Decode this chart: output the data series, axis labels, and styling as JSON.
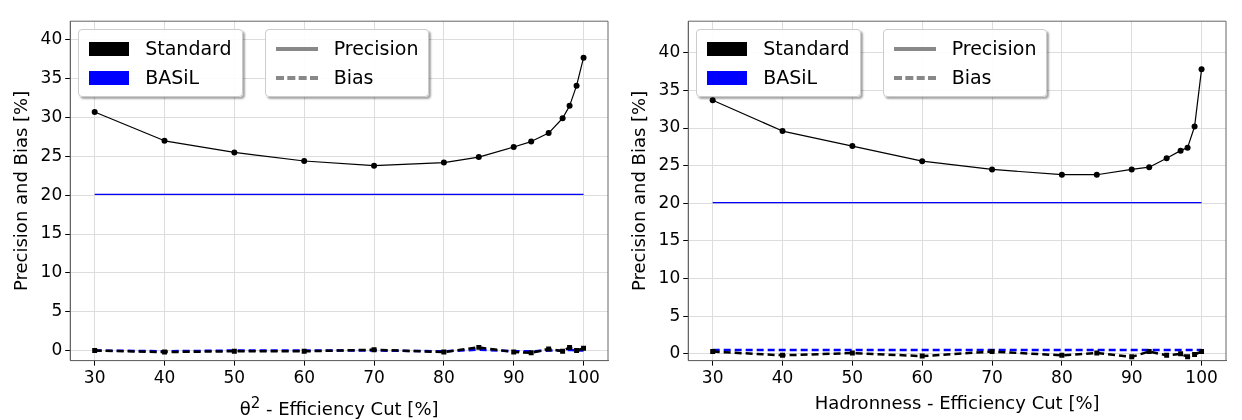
{
  "chart_data": [
    {
      "type": "line",
      "xlabel": "θ$^{2}$ - Efficiency Cut [%]",
      "ylabel": "Precision and Bias [%]",
      "xlim": [
        26.5,
        103.5
      ],
      "ylim": [
        -1.3,
        42.4
      ],
      "xticks": [
        30,
        40,
        50,
        60,
        70,
        80,
        90,
        100
      ],
      "yticks": [
        0,
        5,
        10,
        15,
        20,
        25,
        30,
        35,
        40
      ],
      "grid": true,
      "legend": "top left",
      "annotations": [
        "Precision",
        "Bias"
      ],
      "x": [
        30,
        40,
        50,
        60,
        70,
        80,
        85,
        90,
        92.5,
        95,
        97,
        98,
        99,
        100
      ],
      "series": [
        {
          "name": "Standard",
          "color": "#000000",
          "marker": "circle",
          "line_style": "solid",
          "values": [
            30.7,
            27.0,
            25.5,
            24.4,
            23.8,
            24.2,
            24.9,
            26.2,
            26.9,
            28.0,
            29.9,
            31.5,
            34.1,
            37.7
          ]
        },
        {
          "name": "BASiL",
          "color": "#0000ff",
          "marker": "none",
          "line_style": "solid",
          "values": [
            20.1,
            20.1,
            20.1,
            20.1,
            20.1,
            20.1,
            20.1,
            20.1,
            20.1,
            20.1,
            20.1,
            20.1,
            20.1,
            20.1
          ]
        },
        {
          "color": "#000000",
          "marker": "square",
          "line_style": "dashed",
          "values": [
            0.0,
            -0.2,
            -0.1,
            -0.1,
            0.1,
            -0.2,
            0.4,
            -0.2,
            -0.3,
            0.2,
            -0.1,
            0.4,
            0.0,
            0.3
          ]
        },
        {
          "color": "#0000ff",
          "marker": "none",
          "line_style": "dashed",
          "values": [
            0.0,
            -0.1,
            0.0,
            0.0,
            0.0,
            -0.1,
            0.1,
            -0.1,
            -0.1,
            0.0,
            0.0,
            0.1,
            0.0,
            0.0
          ]
        }
      ]
    },
    {
      "type": "line",
      "xlabel": "Hadronness - Efficiency Cut [%]",
      "ylabel": "Precision and Bias [%]",
      "xlim": [
        26.5,
        103.5
      ],
      "ylim": [
        -0.9,
        44.2
      ],
      "xticks": [
        30,
        40,
        50,
        60,
        70,
        80,
        90,
        100
      ],
      "yticks": [
        0,
        5,
        10,
        15,
        20,
        25,
        30,
        35,
        40
      ],
      "grid": true,
      "legend": "top left",
      "annotations": [
        "Precision",
        "Bias"
      ],
      "x": [
        30,
        40,
        50,
        60,
        70,
        80,
        85,
        90,
        92.5,
        95,
        97,
        98,
        99,
        100
      ],
      "series": [
        {
          "name": "Standard",
          "color": "#000000",
          "marker": "circle",
          "line_style": "solid",
          "values": [
            33.7,
            29.6,
            27.6,
            25.6,
            24.5,
            23.8,
            23.8,
            24.5,
            24.8,
            26.0,
            27.0,
            27.4,
            30.2,
            37.8
          ]
        },
        {
          "name": "BASiL",
          "color": "#0000ff",
          "marker": "none",
          "line_style": "solid",
          "values": [
            20.1,
            20.1,
            20.1,
            20.1,
            20.1,
            20.1,
            20.1,
            20.1,
            20.1,
            20.1,
            20.1,
            20.1,
            20.1,
            20.1
          ]
        },
        {
          "color": "#000000",
          "marker": "square",
          "line_style": "dashed",
          "values": [
            0.3,
            -0.2,
            0.1,
            -0.3,
            0.3,
            -0.2,
            0.1,
            -0.4,
            0.3,
            -0.2,
            0.0,
            -0.4,
            -0.1,
            0.3
          ]
        },
        {
          "color": "#0000ff",
          "marker": "none",
          "line_style": "dashed",
          "values": [
            0.5,
            0.5,
            0.5,
            0.5,
            0.5,
            0.5,
            0.5,
            0.5,
            0.5,
            0.5,
            0.5,
            0.5,
            0.5,
            0.5
          ]
        }
      ]
    }
  ]
}
